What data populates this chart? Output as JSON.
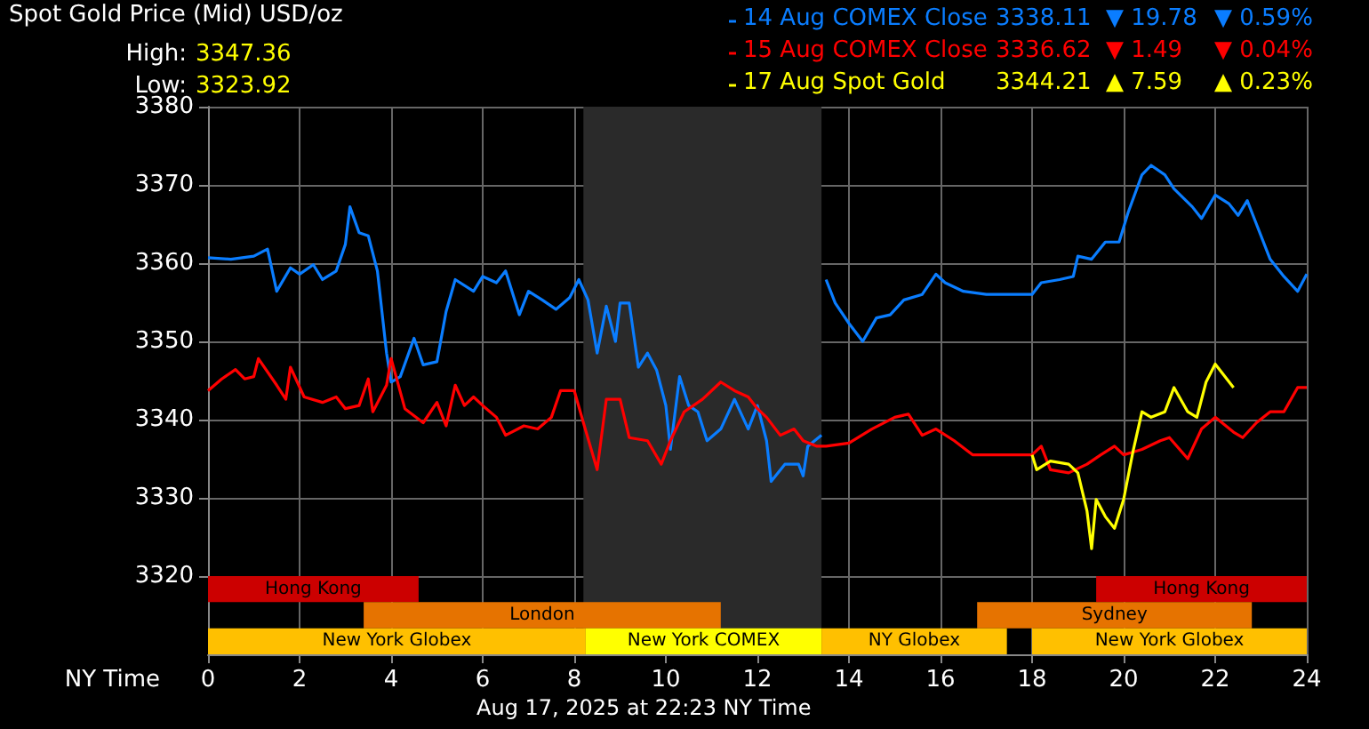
{
  "chart_data": {
    "type": "line",
    "title": "Spot Gold Price (Mid) USD/oz",
    "xlabel": "NY Time",
    "annotations": [
      "High:",
      "3347.36",
      "Low:",
      "3323.92",
      "3338.11",
      "▼ 19.78",
      "▼ 0.59%",
      "3336.62",
      "▼ 1.49",
      "▼ 0.04%",
      "3344.21",
      "▲ 7.59",
      "▲ 0.23%",
      "Aug 17, 2025 at 22:23 NY Time"
    ],
    "xlim": [
      0,
      24
    ],
    "xticks": [
      0,
      2,
      4,
      6,
      8,
      10,
      12,
      14,
      16,
      18,
      20,
      22,
      24
    ],
    "ylim": [
      3310,
      3380
    ],
    "yticks": [
      3320,
      3330,
      3340,
      3350,
      3360,
      3370,
      3380
    ],
    "grid": true,
    "legend": "top right",
    "marker": "none",
    "line_style": "solid",
    "series": [
      {
        "name": "14 Aug COMEX Close",
        "color": "#0a7dff",
        "x": [
          0,
          0.5,
          1,
          1.3,
          1.5,
          1.8,
          2,
          2.3,
          2.5,
          2.8,
          3,
          3.1,
          3.3,
          3.5,
          3.7,
          3.9,
          4,
          4.2,
          4.5,
          4.7,
          5,
          5.2,
          5.4,
          5.8,
          6,
          6.3,
          6.5,
          6.8,
          7,
          7.3,
          7.6,
          7.9,
          8.1,
          8.3,
          8.5,
          8.7,
          8.9,
          9,
          9.2,
          9.4,
          9.6,
          9.8,
          10,
          10.1,
          10.3,
          10.5,
          10.7,
          10.9,
          11.2,
          11.5,
          11.8,
          12,
          12.2,
          12.3,
          12.6,
          12.9,
          13,
          13.1,
          13.4,
          13.45,
          13.5,
          13.7,
          14,
          14.3,
          14.6,
          14.9,
          15.2,
          15.6,
          15.9,
          16.1,
          16.5,
          17,
          18,
          18.2,
          18.6,
          18.9,
          19,
          19.3,
          19.6,
          19.9,
          20.1,
          20.4,
          20.6,
          20.9,
          21.1,
          21.5,
          21.7,
          22,
          22.3,
          22.5,
          22.7,
          22.9,
          23.2,
          23.5,
          23.8,
          24
        ],
        "values": [
          3360.7,
          3360.5,
          3360.9,
          3361.8,
          3356.4,
          3359.4,
          3358.6,
          3359.8,
          3357.9,
          3359,
          3362.4,
          3367.2,
          3363.9,
          3363.5,
          3359,
          3348.5,
          3344.8,
          3345.5,
          3350.4,
          3347,
          3347.4,
          3353.8,
          3357.9,
          3356.4,
          3358.3,
          3357.5,
          3359,
          3353.4,
          3356.4,
          3355.3,
          3354.1,
          3355.6,
          3357.9,
          3355.3,
          3348.5,
          3354.5,
          3350,
          3354.9,
          3354.9,
          3346.7,
          3348.5,
          3346.3,
          3341.8,
          3336.2,
          3345.5,
          3341.8,
          3341,
          3337.3,
          3338.8,
          3342.6,
          3338.8,
          3341.8,
          3337.3,
          3332.1,
          3334.3,
          3334.3,
          3332.8,
          3336.6,
          3338,
          null,
          3357.9,
          3354.9,
          3352.3,
          3350,
          3353,
          3353.4,
          3355.3,
          3356,
          3358.6,
          3357.5,
          3356.4,
          3356,
          3356,
          3357.5,
          3357.9,
          3358.3,
          3360.9,
          3360.5,
          3362.7,
          3362.7,
          3366.5,
          3371.3,
          3372.5,
          3371.3,
          3369.5,
          3367.2,
          3365.7,
          3368.7,
          3367.6,
          3366.1,
          3368,
          3365,
          3360.5,
          3358.3,
          3356.4,
          3358.6
        ]
      },
      {
        "name": "15 Aug COMEX Close",
        "color": "#ff0000",
        "x": [
          0,
          0.3,
          0.6,
          0.8,
          1,
          1.1,
          1.5,
          1.7,
          1.8,
          2.1,
          2.5,
          2.8,
          3,
          3.3,
          3.5,
          3.6,
          3.9,
          4,
          4.3,
          4.7,
          5,
          5.2,
          5.4,
          5.6,
          5.8,
          6,
          6.3,
          6.5,
          6.9,
          7.2,
          7.5,
          7.7,
          8,
          8.2,
          8.5,
          8.7,
          9,
          9.2,
          9.6,
          9.9,
          10.1,
          10.4,
          10.8,
          11.2,
          11.5,
          11.8,
          12,
          12.2,
          12.5,
          12.8,
          13,
          13.3,
          13.5,
          14,
          14.5,
          15,
          15.3,
          15.6,
          15.9,
          16.3,
          16.7,
          17,
          18,
          18.2,
          18.4,
          18.8,
          19.2,
          19.5,
          19.8,
          20,
          20.4,
          20.8,
          21,
          21.4,
          21.7,
          22,
          22.4,
          22.6,
          22.9,
          23.2,
          23.5,
          23.8,
          24
        ],
        "values": [
          3343.7,
          3345.2,
          3346.4,
          3345.2,
          3345.5,
          3347.8,
          3344.4,
          3342.6,
          3346.7,
          3342.9,
          3342.2,
          3342.9,
          3341.4,
          3341.8,
          3345.2,
          3341,
          3344.4,
          3347.8,
          3341.4,
          3339.6,
          3342.2,
          3339.2,
          3344.4,
          3341.8,
          3342.9,
          3341.8,
          3340.3,
          3338,
          3339.2,
          3338.8,
          3340.3,
          3343.7,
          3343.7,
          3339.6,
          3333.6,
          3342.6,
          3342.6,
          3337.7,
          3337.3,
          3334.3,
          3337.3,
          3341,
          3342.6,
          3344.8,
          3343.7,
          3342.9,
          3341.4,
          3340.3,
          3338,
          3338.8,
          3337.3,
          3336.6,
          3336.6,
          3337,
          3338.8,
          3340.3,
          3340.7,
          3338,
          3338.8,
          3337.3,
          3335.5,
          3335.5,
          3335.5,
          3336.6,
          3333.6,
          3333.2,
          3334.3,
          3335.5,
          3336.6,
          3335.5,
          3336.2,
          3337.3,
          3337.7,
          3335,
          3338.8,
          3340.3,
          3338.4,
          3337.7,
          3339.6,
          3341,
          3341,
          3344.1,
          3344.1
        ]
      },
      {
        "name": "17 Aug Spot Gold",
        "color": "#ffff00",
        "x": [
          18,
          18.1,
          18.4,
          18.8,
          19,
          19.2,
          19.3,
          19.4,
          19.6,
          19.8,
          20,
          20.2,
          20.4,
          20.6,
          20.9,
          21.1,
          21.4,
          21.6,
          21.8,
          22,
          22.2,
          22.4
        ],
        "values": [
          3335.5,
          3333.6,
          3334.7,
          3334.3,
          3333.2,
          3328.3,
          3323.5,
          3329.8,
          3327.6,
          3326.1,
          3329.8,
          3335.8,
          3341,
          3340.3,
          3341,
          3344.1,
          3341,
          3340.3,
          3344.8,
          3347.1,
          3345.6,
          3344.1
        ]
      }
    ],
    "bands": [
      {
        "axis": "x",
        "from": 8.2,
        "to": 13.4,
        "color": "#2a2a2a"
      },
      {
        "axis": "x",
        "from": 0,
        "to": 4.6,
        "label": "Hong Kong",
        "color": "#cc0000"
      },
      {
        "axis": "x",
        "from": 19.4,
        "to": 24,
        "label": "Hong Kong",
        "color": "#cc0000"
      },
      {
        "axis": "x",
        "from": 3.4,
        "to": 11.2,
        "label": "London",
        "color": "#e67300"
      },
      {
        "axis": "x",
        "from": 16.8,
        "to": 22.8,
        "label": "Sydney",
        "color": "#e67300"
      },
      {
        "axis": "x",
        "from": 0,
        "to": 8.25,
        "label": "New York Globex",
        "color": "#ffc000"
      },
      {
        "axis": "x",
        "from": 8.25,
        "to": 13.4,
        "label": "New York COMEX",
        "color": "#ffff00"
      },
      {
        "axis": "x",
        "from": 13.4,
        "to": 17.45,
        "label": "NY Globex",
        "color": "#ffc000"
      },
      {
        "axis": "x",
        "from": 18,
        "to": 24,
        "label": "New York Globex",
        "color": "#ffc000"
      }
    ]
  }
}
